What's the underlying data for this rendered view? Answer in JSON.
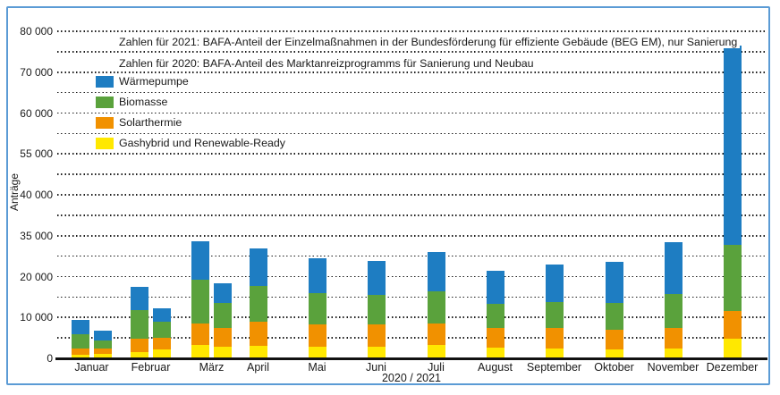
{
  "figure": {
    "border_color": "#5b9bd5",
    "background_color": "#ffffff",
    "text_color": "#1a1a1a"
  },
  "notes": [
    "Zahlen für 2021: BAFA-Anteil der Einzelmaßnahmen in der Bundesförderung für effiziente Gebäude (BEG EM), nur Sanierung",
    "Zahlen für 2020: BAFA-Anteil des Marktanreizprogramms für Sanierung und Neubau"
  ],
  "chart_data": {
    "type": "bar",
    "stacked": true,
    "title": "",
    "ylabel": "Anträge",
    "xlabel": "2020 / 2021",
    "grid": "horizontal dotted, every 5 000",
    "ylim": [
      0,
      80000
    ],
    "gridline_step_value": 5000,
    "y_tick_labels_as_printed": [
      "0",
      "10 000",
      "20 000",
      "35 000",
      "40 000",
      "55 000",
      "60 000",
      "70 000",
      "80 000"
    ],
    "legend_position": "top-left inside plot",
    "legend": [
      {
        "label": "Wärmepumpe",
        "color": "#1e7dc2"
      },
      {
        "label": "Biomasse",
        "color": "#5aa23c"
      },
      {
        "label": "Solarthermie",
        "color": "#f19100"
      },
      {
        "label": "Gashybrid und Renewable-Ready",
        "color": "#ffe800"
      }
    ],
    "segment_order_bottom_to_top": [
      "Gashybrid und Renewable-Ready",
      "Solarthermie",
      "Biomasse",
      "Wärmepumpe"
    ],
    "segment_colors_bottom_to_top": [
      "#ffe800",
      "#f19100",
      "#5aa23c",
      "#1e7dc2"
    ],
    "months": [
      {
        "label": "Januar",
        "bars": [
          {
            "year": "2021",
            "values": [
              900,
              1500,
              3500,
              3500
            ]
          },
          {
            "year": "2020",
            "values": [
              1000,
              1500,
              1900,
              2300
            ]
          }
        ]
      },
      {
        "label": "Februar",
        "bars": [
          {
            "year": "2021",
            "values": [
              1500,
              3300,
              6900,
              5800
            ]
          },
          {
            "year": "2020",
            "values": [
              2100,
              2900,
              3900,
              3300
            ]
          }
        ]
      },
      {
        "label": "März",
        "bars": [
          {
            "year": "2021",
            "values": [
              3300,
              5300,
              10600,
              9400
            ]
          },
          {
            "year": "2020",
            "values": [
              2900,
              4500,
              6100,
              4900
            ]
          }
        ]
      },
      {
        "label": "April",
        "bars": [
          {
            "year": "2020",
            "values": [
              3000,
              5900,
              8800,
              9200
            ]
          }
        ]
      },
      {
        "label": "Mai",
        "bars": [
          {
            "year": "2020",
            "values": [
              2800,
              5400,
              7800,
              8400
            ]
          }
        ]
      },
      {
        "label": "Juni",
        "bars": [
          {
            "year": "2020",
            "values": [
              2800,
              5600,
              7100,
              8300
            ]
          }
        ]
      },
      {
        "label": "Juli",
        "bars": [
          {
            "year": "2020",
            "values": [
              3300,
              5300,
              7800,
              9600
            ]
          }
        ]
      },
      {
        "label": "August",
        "bars": [
          {
            "year": "2020",
            "values": [
              2600,
              4800,
              6000,
              8000
            ]
          }
        ]
      },
      {
        "label": "September",
        "bars": [
          {
            "year": "2020",
            "values": [
              2400,
              5100,
              6200,
              9300
            ]
          }
        ]
      },
      {
        "label": "Oktober",
        "bars": [
          {
            "year": "2020",
            "values": [
              2100,
              4800,
              6700,
              9900
            ]
          }
        ]
      },
      {
        "label": "November",
        "bars": [
          {
            "year": "2020",
            "values": [
              2400,
              5000,
              8300,
              12700
            ]
          }
        ]
      },
      {
        "label": "Dezember",
        "bars": [
          {
            "year": "2020",
            "values": [
              4800,
              6700,
              16300,
              48600
            ]
          }
        ]
      }
    ]
  }
}
